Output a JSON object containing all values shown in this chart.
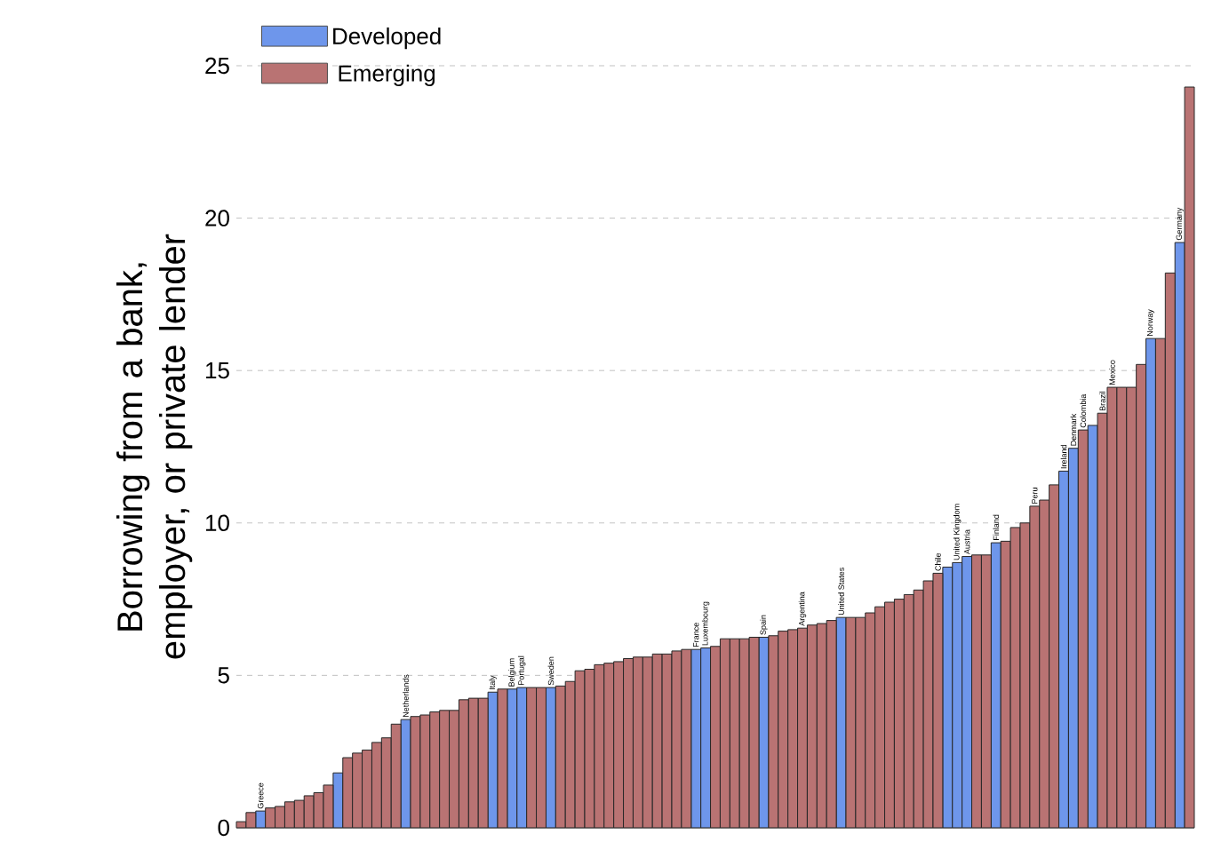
{
  "chart_data": {
    "type": "bar",
    "ylabel": "Borrowing from a bank, employer, or private lender",
    "categories": [
      null,
      null,
      "Greece",
      null,
      null,
      null,
      null,
      null,
      null,
      null,
      null,
      null,
      null,
      null,
      null,
      null,
      null,
      "Netherlands",
      null,
      null,
      null,
      null,
      null,
      null,
      null,
      null,
      "Italy",
      null,
      "Belgium",
      "Portugal",
      null,
      null,
      "Sweden",
      null,
      null,
      null,
      null,
      null,
      null,
      null,
      null,
      null,
      null,
      null,
      null,
      null,
      null,
      "France",
      "Luxembourg",
      null,
      null,
      null,
      null,
      null,
      "Spain",
      null,
      null,
      null,
      "Argentina",
      null,
      null,
      null,
      "United States",
      null,
      null,
      null,
      null,
      null,
      null,
      null,
      null,
      null,
      "Chile",
      null,
      "United Kingdom",
      "Austria",
      null,
      null,
      "Finland",
      null,
      null,
      null,
      "Peru",
      null,
      null,
      "Ireland",
      "Denmark",
      "Colombia",
      null,
      "Brazil",
      "Mexico",
      null,
      null,
      null,
      "Norway",
      null,
      null,
      "Germany",
      null
    ],
    "series": [
      {
        "name": "Developed",
        "color": "#6e96eb",
        "values": [
          null,
          null,
          0.55,
          null,
          null,
          null,
          null,
          null,
          null,
          null,
          1.8,
          null,
          null,
          null,
          null,
          null,
          null,
          3.55,
          null,
          null,
          null,
          null,
          null,
          null,
          null,
          null,
          4.45,
          null,
          4.55,
          4.6,
          null,
          null,
          4.6,
          null,
          null,
          null,
          null,
          null,
          null,
          null,
          null,
          null,
          null,
          null,
          null,
          null,
          null,
          5.85,
          5.9,
          null,
          null,
          null,
          null,
          null,
          6.25,
          null,
          null,
          null,
          null,
          null,
          null,
          null,
          6.9,
          null,
          null,
          null,
          null,
          null,
          null,
          null,
          null,
          null,
          null,
          8.55,
          8.7,
          8.9,
          null,
          null,
          9.35,
          null,
          null,
          null,
          null,
          null,
          null,
          11.7,
          12.45,
          null,
          13.2,
          null,
          null,
          null,
          null,
          null,
          16.05,
          null,
          null,
          19.2,
          null
        ]
      },
      {
        "name": "Emerging",
        "color": "#b97373",
        "values": [
          0.2,
          0.5,
          null,
          0.65,
          0.7,
          0.85,
          0.9,
          1.05,
          1.15,
          1.4,
          null,
          2.3,
          2.45,
          2.55,
          2.8,
          2.95,
          3.4,
          null,
          3.65,
          3.7,
          3.8,
          3.85,
          3.85,
          4.2,
          4.25,
          4.25,
          null,
          4.55,
          null,
          null,
          4.6,
          4.6,
          null,
          4.65,
          4.8,
          5.15,
          5.2,
          5.35,
          5.4,
          5.45,
          5.55,
          5.6,
          5.6,
          5.7,
          5.7,
          5.8,
          5.85,
          null,
          null,
          5.95,
          6.2,
          6.2,
          6.2,
          6.25,
          null,
          6.3,
          6.45,
          6.5,
          6.55,
          6.65,
          6.7,
          6.8,
          null,
          6.9,
          6.9,
          7.05,
          7.25,
          7.4,
          7.5,
          7.65,
          7.8,
          8.1,
          8.35,
          null,
          null,
          null,
          8.95,
          8.95,
          null,
          9.4,
          9.85,
          10.0,
          10.55,
          10.75,
          11.25,
          null,
          null,
          13.05,
          null,
          13.6,
          14.45,
          14.45,
          14.45,
          15.2,
          null,
          16.05,
          18.2,
          null,
          24.3
        ]
      }
    ],
    "ylim": [
      0,
      25
    ],
    "yticks": [
      0,
      5,
      10,
      15,
      20,
      25
    ],
    "grid": "y",
    "legend": "top left"
  }
}
